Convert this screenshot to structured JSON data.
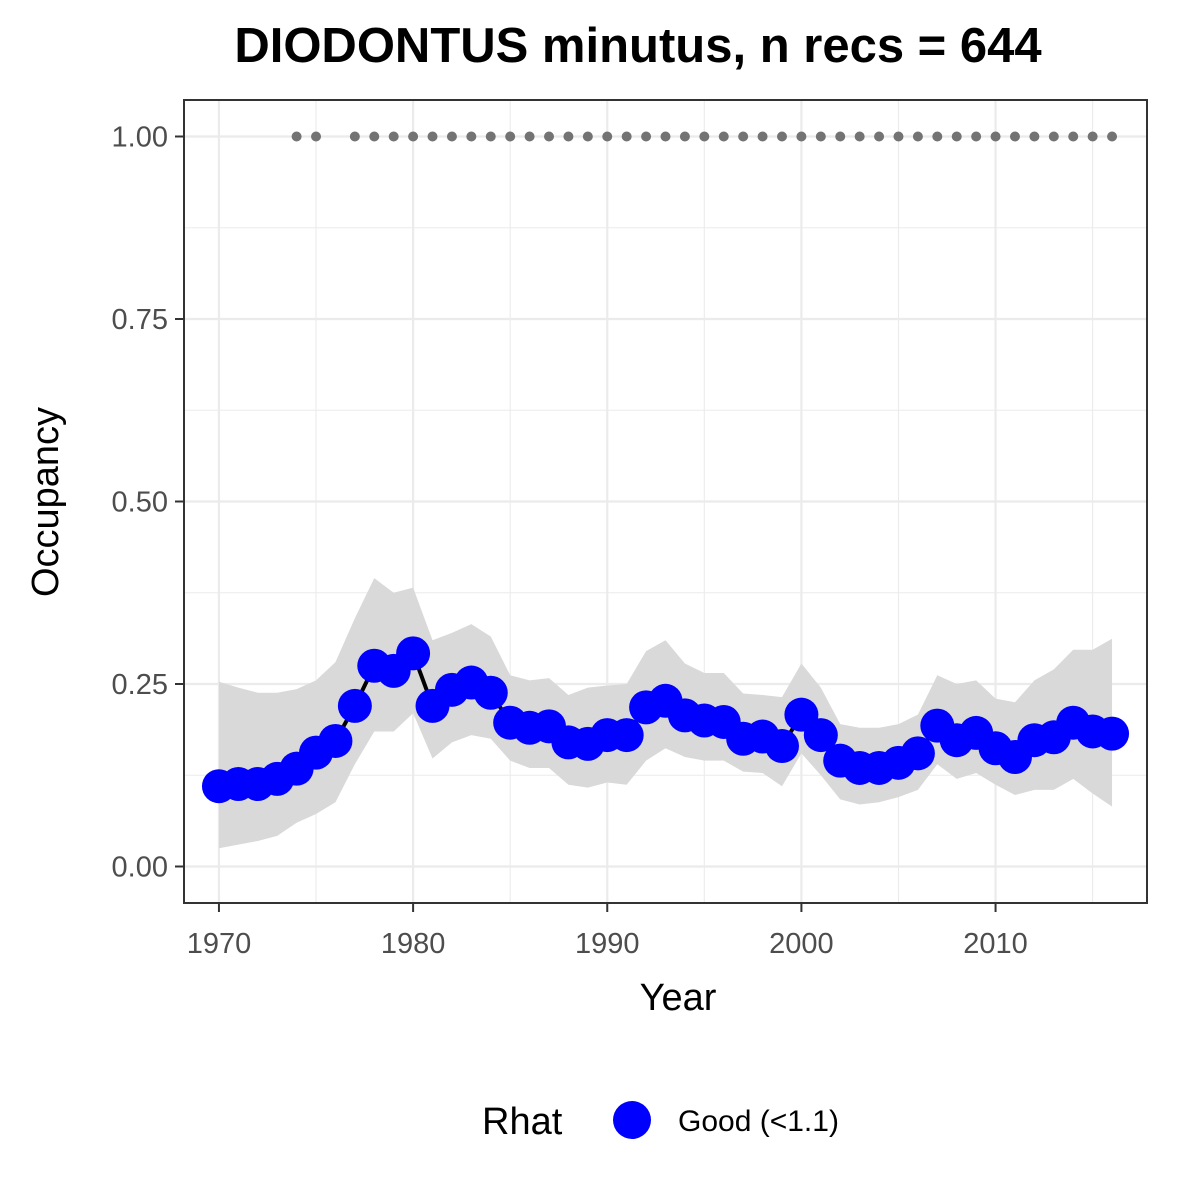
{
  "chart_data": {
    "type": "line",
    "title": "DIODONTUS minutus, n recs = 644",
    "xlabel": "Year",
    "ylabel": "Occupancy",
    "xlim": [
      1968.2,
      2017.8
    ],
    "ylim": [
      -0.05,
      1.05
    ],
    "x_ticks": [
      1970,
      1980,
      1990,
      2000,
      2010
    ],
    "x_tick_labels": [
      "1970",
      "1980",
      "1990",
      "2000",
      "2010"
    ],
    "y_ticks": [
      0.0,
      0.25,
      0.5,
      0.75,
      1.0
    ],
    "y_tick_labels": [
      "0.00",
      "0.25",
      "0.50",
      "0.75",
      "1.00"
    ],
    "grid": true,
    "legend": {
      "title": "Rhat",
      "label": "Good (<1.1)",
      "placement": "bottom"
    },
    "colors": {
      "point": "#0000ff",
      "line": "#000000",
      "ribbon": "#d9d9d9",
      "rug": "#737373",
      "grid": "#ebebeb",
      "panel_border": "#333333"
    },
    "series": [
      {
        "name": "Good (<1.1)",
        "x": [
          1970,
          1971,
          1972,
          1973,
          1974,
          1975,
          1976,
          1977,
          1978,
          1979,
          1980,
          1981,
          1982,
          1983,
          1984,
          1985,
          1986,
          1987,
          1988,
          1989,
          1990,
          1991,
          1992,
          1993,
          1994,
          1995,
          1996,
          1997,
          1998,
          1999,
          2000,
          2001,
          2002,
          2003,
          2004,
          2005,
          2006,
          2007,
          2008,
          2009,
          2010,
          2011,
          2012,
          2013,
          2014,
          2015,
          2016
        ],
        "y": [
          0.11,
          0.113,
          0.113,
          0.12,
          0.134,
          0.156,
          0.172,
          0.22,
          0.275,
          0.268,
          0.292,
          0.22,
          0.242,
          0.252,
          0.238,
          0.197,
          0.19,
          0.192,
          0.17,
          0.168,
          0.18,
          0.18,
          0.218,
          0.227,
          0.207,
          0.2,
          0.198,
          0.175,
          0.178,
          0.165,
          0.208,
          0.18,
          0.145,
          0.135,
          0.135,
          0.142,
          0.155,
          0.193,
          0.173,
          0.183,
          0.162,
          0.15,
          0.173,
          0.177,
          0.197,
          0.185,
          0.182
        ],
        "lower": [
          0.025,
          0.03,
          0.035,
          0.042,
          0.06,
          0.072,
          0.088,
          0.14,
          0.185,
          0.185,
          0.21,
          0.148,
          0.17,
          0.18,
          0.175,
          0.145,
          0.135,
          0.135,
          0.112,
          0.108,
          0.115,
          0.112,
          0.145,
          0.162,
          0.15,
          0.145,
          0.145,
          0.13,
          0.128,
          0.11,
          0.155,
          0.125,
          0.092,
          0.085,
          0.088,
          0.095,
          0.105,
          0.14,
          0.12,
          0.128,
          0.112,
          0.098,
          0.105,
          0.105,
          0.12,
          0.1,
          0.082
        ],
        "upper": [
          0.253,
          0.245,
          0.238,
          0.238,
          0.243,
          0.255,
          0.28,
          0.34,
          0.395,
          0.375,
          0.382,
          0.31,
          0.32,
          0.332,
          0.315,
          0.262,
          0.255,
          0.258,
          0.235,
          0.245,
          0.248,
          0.25,
          0.295,
          0.31,
          0.278,
          0.265,
          0.265,
          0.237,
          0.235,
          0.232,
          0.278,
          0.245,
          0.195,
          0.19,
          0.19,
          0.195,
          0.208,
          0.262,
          0.25,
          0.255,
          0.23,
          0.225,
          0.255,
          0.27,
          0.297,
          0.297,
          0.312
        ]
      }
    ],
    "rug": {
      "y": 1.0,
      "x": [
        1974,
        1975,
        1977,
        1978,
        1979,
        1980,
        1981,
        1982,
        1983,
        1984,
        1985,
        1986,
        1987,
        1988,
        1989,
        1990,
        1991,
        1992,
        1993,
        1994,
        1995,
        1996,
        1997,
        1998,
        1999,
        2000,
        2001,
        2002,
        2003,
        2004,
        2005,
        2006,
        2007,
        2008,
        2009,
        2010,
        2011,
        2012,
        2013,
        2014,
        2015,
        2016
      ]
    }
  }
}
